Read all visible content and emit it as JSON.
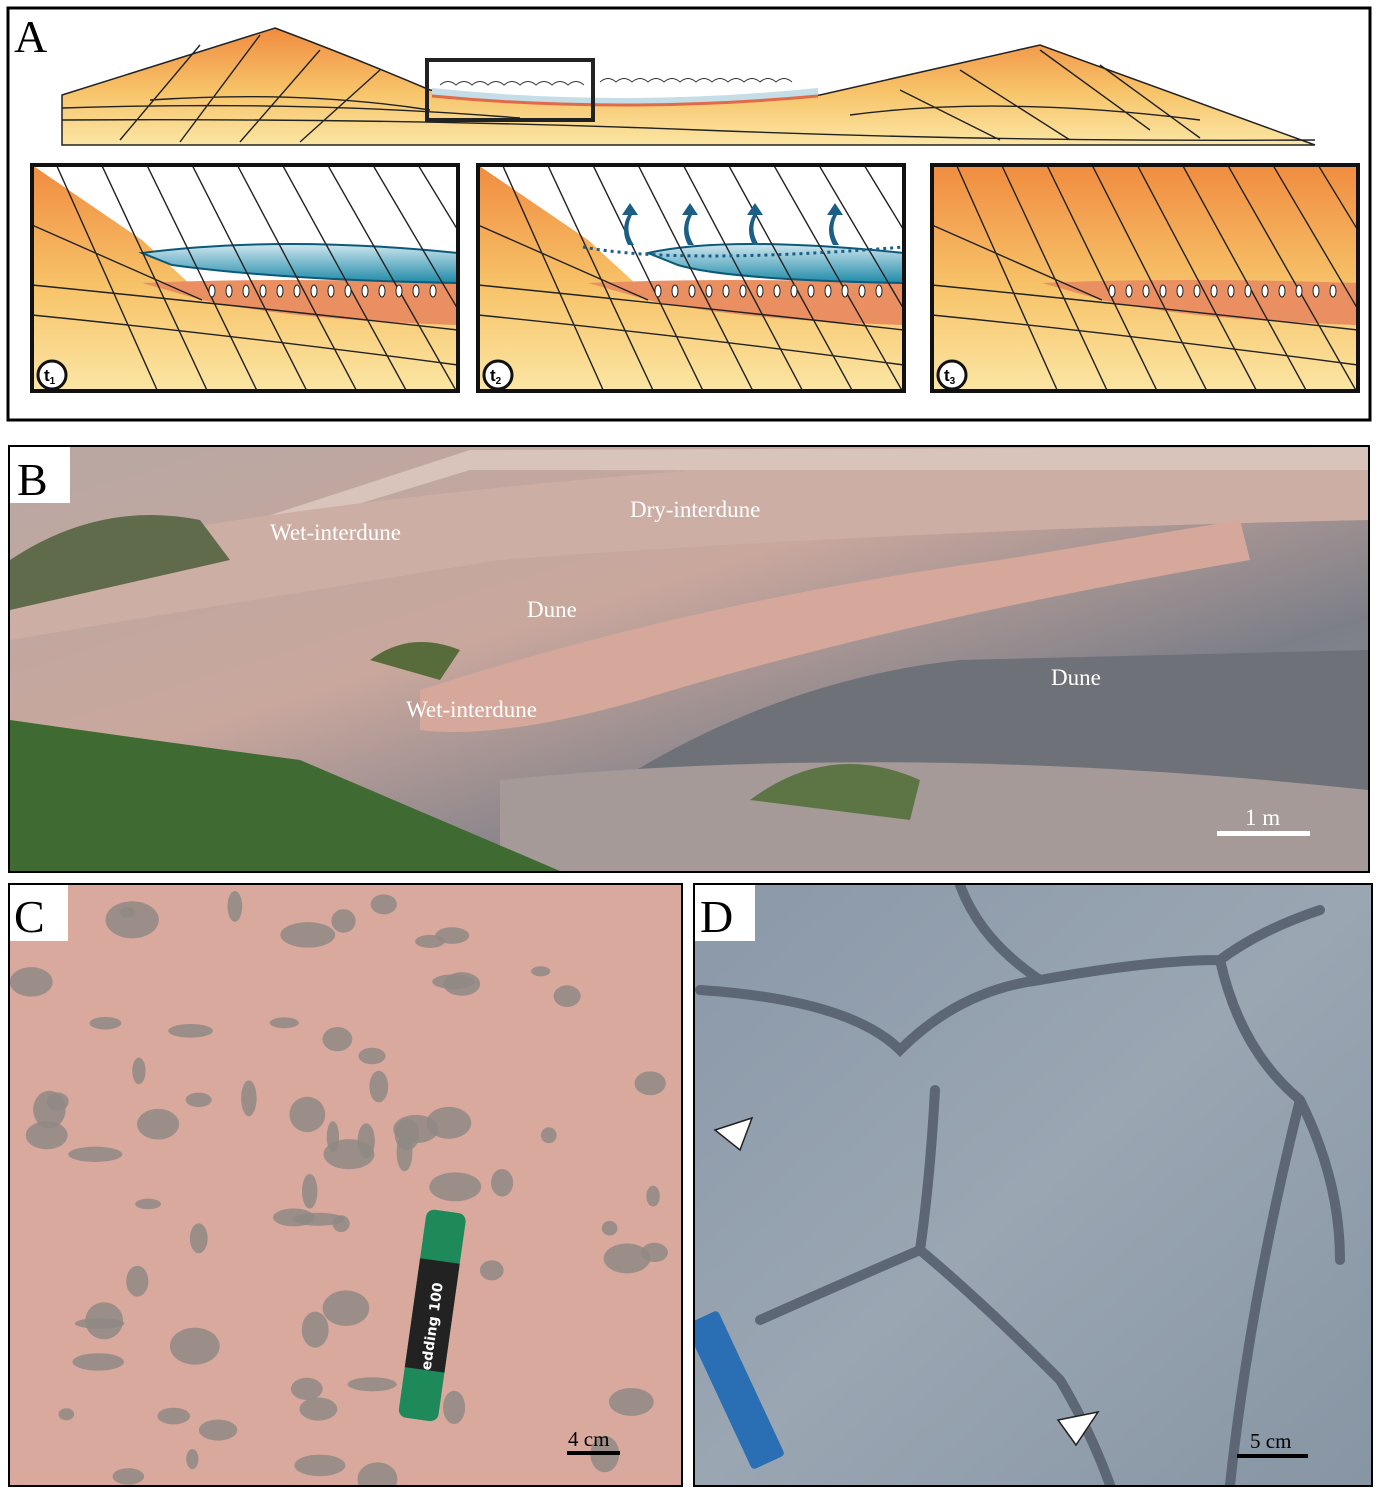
{
  "panels": [
    {
      "label": "A",
      "insets": [
        {
          "base": "t",
          "sub": "1"
        },
        {
          "base": "t",
          "sub": "2"
        },
        {
          "base": "t",
          "sub": "3"
        }
      ]
    },
    {
      "label": "B",
      "annotations": [
        "Wet-interdune",
        "Dry-interdune",
        "Dune",
        "Wet-interdune",
        "Dune"
      ],
      "scale": "1 m"
    },
    {
      "label": "C",
      "marker_text": "edding 100",
      "scale": "4 cm"
    },
    {
      "label": "D",
      "scale": "5 cm"
    }
  ]
}
